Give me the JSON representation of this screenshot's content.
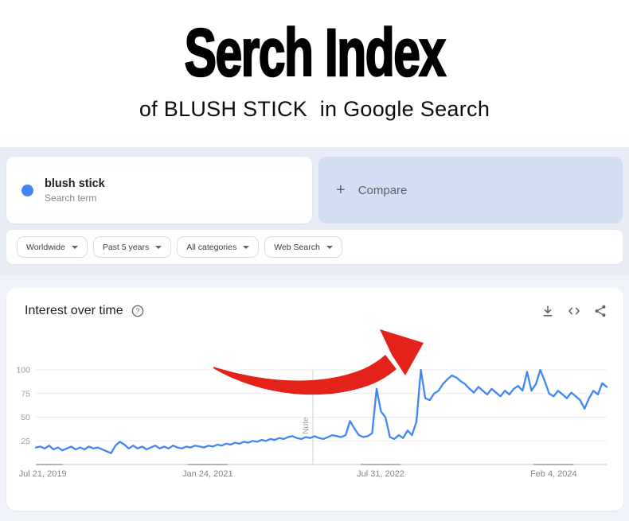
{
  "page": {
    "background": "#ffffff",
    "header_section_bg": "#e8ecf5",
    "chart_section_bg": "#f0f3f9"
  },
  "header": {
    "title": "Serch Index",
    "subtitle": "of BLUSH STICK  in Google Search"
  },
  "explore": {
    "term_card": {
      "term": "blush stick",
      "sublabel": "Search term",
      "dot_color": "#4285f4"
    },
    "compare_card": {
      "plus": "+",
      "label": "Compare",
      "background": "#d2dff2"
    },
    "filters": [
      {
        "label": "Worldwide"
      },
      {
        "label": "Past 5 years"
      },
      {
        "label": "All categories"
      },
      {
        "label": "Web Search"
      }
    ]
  },
  "widget": {
    "title": "Interest over time",
    "icons": {
      "help": "help-circle-icon",
      "download": "download-icon",
      "embed": "embed-code-icon",
      "share": "share-icon"
    }
  },
  "chart_data": {
    "type": "line",
    "title": "Interest over time",
    "x_ticks": [
      "Jul 21, 2019",
      "Jan 24, 2021",
      "Jul 31, 2022",
      "Feb 4, 2024"
    ],
    "y_ticks": [
      25,
      50,
      75,
      100
    ],
    "ylim": [
      0,
      100
    ],
    "grid": true,
    "legend_position": "none",
    "note_label": "Note",
    "note_x_fraction": 0.4854,
    "series": [
      {
        "name": "blush stick",
        "color": "#4285f4",
        "values": [
          18,
          19,
          17,
          20,
          16,
          18,
          15,
          17,
          19,
          16,
          18,
          16,
          19,
          17,
          18,
          16,
          14,
          12,
          20,
          24,
          21,
          17,
          20,
          17,
          19,
          16,
          18,
          20,
          17,
          19,
          17,
          20,
          18,
          17,
          19,
          18,
          20,
          19,
          18,
          20,
          19,
          21,
          20,
          22,
          21,
          23,
          22,
          24,
          23,
          25,
          24,
          26,
          25,
          27,
          26,
          28,
          27,
          29,
          30,
          28,
          27,
          29,
          28,
          30,
          28,
          27,
          29,
          31,
          30,
          29,
          31,
          46,
          38,
          31,
          29,
          30,
          33,
          80,
          56,
          50,
          29,
          27,
          31,
          28,
          36,
          31,
          45,
          100,
          70,
          68,
          75,
          78,
          85,
          90,
          94,
          92,
          88,
          85,
          80,
          76,
          82,
          78,
          74,
          80,
          76,
          72,
          78,
          74,
          80,
          83,
          78,
          98,
          78,
          85,
          100,
          88,
          75,
          72,
          78,
          74,
          70,
          76,
          72,
          68,
          59,
          70,
          78,
          74,
          86,
          82
        ]
      }
    ],
    "annotation": {
      "type": "swoosh-arrow-up",
      "color": "#e3231a"
    }
  }
}
